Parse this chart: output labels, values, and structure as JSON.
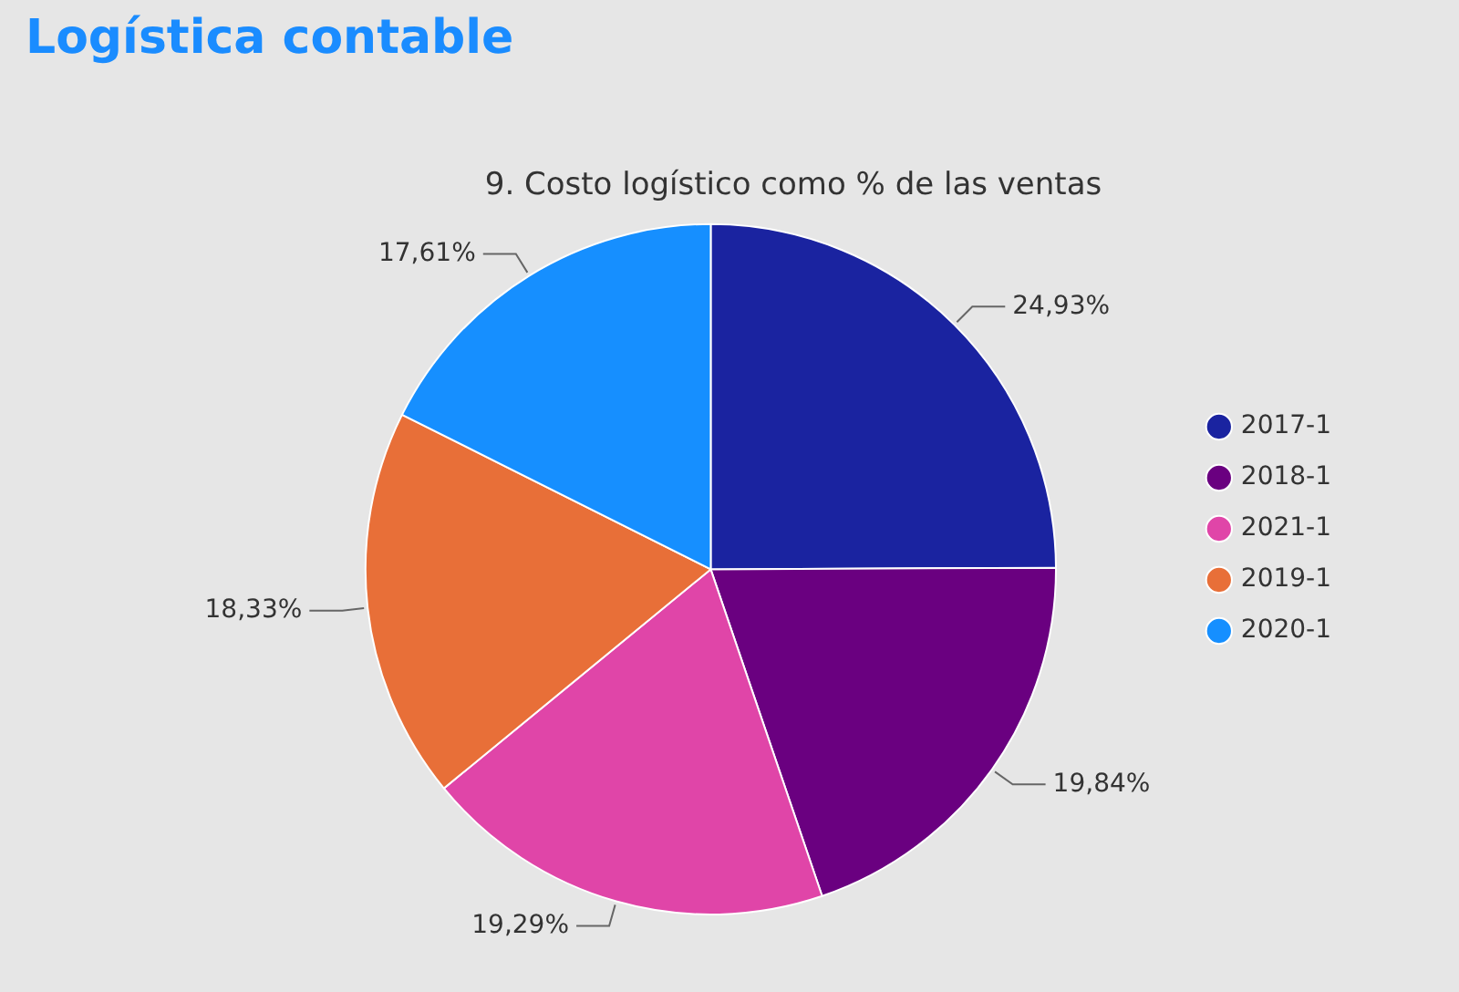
{
  "chart_data": {
    "type": "pie",
    "title": "Logística contable",
    "subtitle": "9. Costo logístico como % de las ventas",
    "categories": [
      "2017-1",
      "2018-1",
      "2021-1",
      "2019-1",
      "2020-1"
    ],
    "values": [
      24.93,
      19.84,
      19.29,
      18.33,
      17.61
    ],
    "colors": [
      "#1a23a0",
      "#6a0080",
      "#e045a8",
      "#e86f38",
      "#168fff"
    ],
    "value_labels": [
      "24,93%",
      "19,84%",
      "19,29%",
      "18,33%",
      "17,61%"
    ],
    "legend": "right"
  }
}
